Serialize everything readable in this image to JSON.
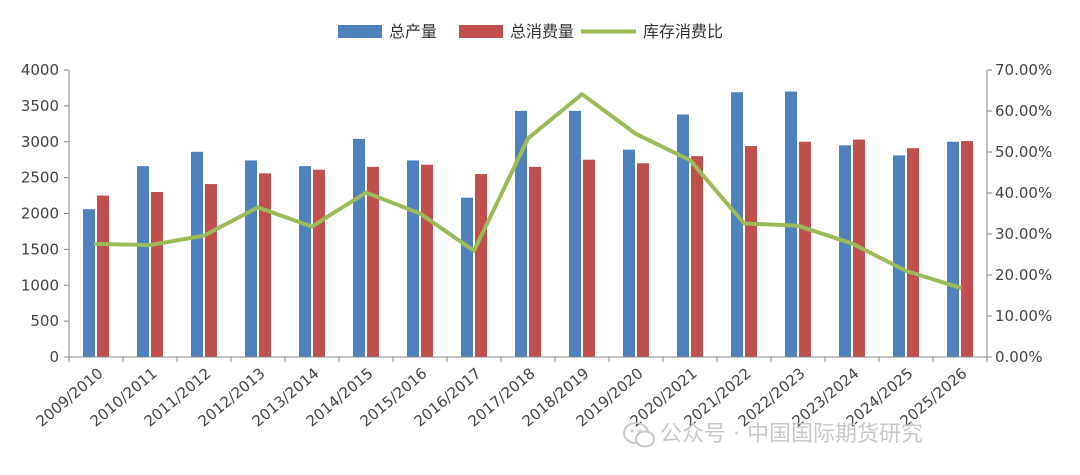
{
  "chart_data": {
    "type": "bar",
    "categories": [
      "2009/2010",
      "2010/2011",
      "2011/2012",
      "2012/2013",
      "2013/2014",
      "2014/2015",
      "2015/2016",
      "2016/2017",
      "2017/2018",
      "2018/2019",
      "2019/2020",
      "2020/2021",
      "2021/2022",
      "2022/2023",
      "2023/2024",
      "2024/2025",
      "2025/2026"
    ],
    "series": [
      {
        "name": "总产量",
        "type": "bar",
        "axis": "left",
        "color": "#4f81bd",
        "values": [
          2060,
          2660,
          2860,
          2740,
          2660,
          3040,
          2740,
          2220,
          3430,
          3430,
          2890,
          3380,
          3690,
          3700,
          2950,
          2810,
          3000
        ]
      },
      {
        "name": "总消费量",
        "type": "bar",
        "axis": "left",
        "color": "#c0504d",
        "values": [
          2250,
          2300,
          2410,
          2560,
          2610,
          2650,
          2680,
          2550,
          2650,
          2750,
          2700,
          2800,
          2940,
          3000,
          3030,
          2910,
          3010
        ]
      },
      {
        "name": "库存消费比",
        "type": "line",
        "axis": "right",
        "color": "#9bbb59",
        "values": [
          27.6,
          27.3,
          29.6,
          36.5,
          31.8,
          40.1,
          35.0,
          25.9,
          53.3,
          64.1,
          54.4,
          48.0,
          32.6,
          32.0,
          27.7,
          21.0,
          16.9
        ]
      }
    ],
    "ylim": [
      0,
      4000
    ],
    "yticks": [
      0,
      500,
      1000,
      1500,
      2000,
      2500,
      3000,
      3500,
      4000
    ],
    "ylim_right": [
      0,
      70
    ],
    "yticks_right": [
      "0.00%",
      "10.00%",
      "20.00%",
      "30.00%",
      "40.00%",
      "50.00%",
      "60.00%",
      "70.00%"
    ],
    "legend": {
      "position": "top-center",
      "labels": [
        "总产量",
        "总消费量",
        "库存消费比"
      ]
    },
    "grid": false
  },
  "watermark": {
    "text": "公众号 · 中国国际期货研究",
    "icon": "wechat-icon"
  }
}
